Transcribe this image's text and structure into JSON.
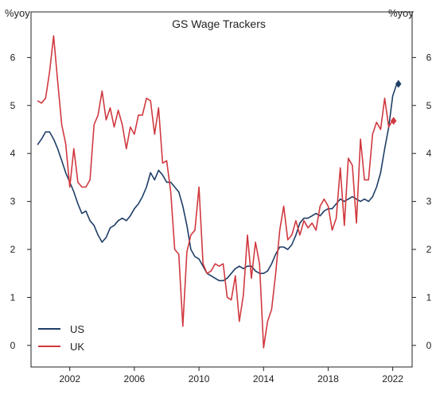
{
  "chart_data": {
    "type": "line",
    "title": "GS Wage Trackers",
    "ylabel_left": "%yoy",
    "ylabel_right": "%yoy",
    "xlim": [
      1999.6,
      2023.2
    ],
    "ylim": [
      -0.45,
      6.95
    ],
    "x_ticks": [
      2002,
      2006,
      2010,
      2014,
      2018,
      2022
    ],
    "x_tick_labels": [
      "2002",
      "2006",
      "2010",
      "2014",
      "2018",
      "2022"
    ],
    "y_ticks": [
      0,
      1,
      2,
      3,
      4,
      5,
      6
    ],
    "y_tick_labels": [
      "0",
      "1",
      "2",
      "3",
      "4",
      "5",
      "6"
    ],
    "grid": false,
    "legend_position": "bottom-left",
    "series": [
      {
        "name": "US",
        "color": "#1f3e66",
        "x": [
          2000.0,
          2000.25,
          2000.5,
          2000.75,
          2001.0,
          2001.25,
          2001.5,
          2001.75,
          2002.0,
          2002.25,
          2002.5,
          2002.75,
          2003.0,
          2003.25,
          2003.5,
          2003.75,
          2004.0,
          2004.25,
          2004.5,
          2004.75,
          2005.0,
          2005.25,
          2005.5,
          2005.75,
          2006.0,
          2006.25,
          2006.5,
          2006.75,
          2007.0,
          2007.25,
          2007.5,
          2007.75,
          2008.0,
          2008.25,
          2008.5,
          2008.75,
          2009.0,
          2009.25,
          2009.5,
          2009.75,
          2010.0,
          2010.25,
          2010.5,
          2010.75,
          2011.0,
          2011.25,
          2011.5,
          2011.75,
          2012.0,
          2012.25,
          2012.5,
          2012.75,
          2013.0,
          2013.25,
          2013.5,
          2013.75,
          2014.0,
          2014.25,
          2014.5,
          2014.75,
          2015.0,
          2015.25,
          2015.5,
          2015.75,
          2016.0,
          2016.25,
          2016.5,
          2016.75,
          2017.0,
          2017.25,
          2017.5,
          2017.75,
          2018.0,
          2018.25,
          2018.5,
          2018.75,
          2019.0,
          2019.25,
          2019.5,
          2019.75,
          2020.0,
          2020.25,
          2020.5,
          2020.75,
          2021.0,
          2021.25,
          2021.5,
          2021.75,
          2022.0,
          2022.25
        ],
        "y": [
          4.18,
          4.3,
          4.45,
          4.45,
          4.3,
          4.1,
          3.85,
          3.6,
          3.4,
          3.2,
          2.95,
          2.75,
          2.8,
          2.6,
          2.5,
          2.3,
          2.15,
          2.25,
          2.45,
          2.5,
          2.6,
          2.65,
          2.6,
          2.7,
          2.85,
          2.95,
          3.1,
          3.3,
          3.6,
          3.45,
          3.65,
          3.55,
          3.4,
          3.4,
          3.3,
          3.2,
          2.9,
          2.5,
          2.0,
          1.85,
          1.8,
          1.65,
          1.5,
          1.45,
          1.4,
          1.35,
          1.35,
          1.4,
          1.5,
          1.6,
          1.65,
          1.6,
          1.65,
          1.65,
          1.55,
          1.5,
          1.5,
          1.55,
          1.7,
          1.9,
          2.05,
          2.05,
          2.0,
          2.1,
          2.3,
          2.55,
          2.65,
          2.65,
          2.7,
          2.75,
          2.7,
          2.8,
          2.85,
          2.85,
          2.95,
          3.05,
          3.0,
          3.05,
          3.1,
          3.05,
          3.0,
          3.05,
          3.0,
          3.1,
          3.3,
          3.6,
          4.1,
          4.55,
          5.2,
          5.45
        ],
        "end_marker": {
          "x": 2022.35,
          "y": 5.45
        }
      },
      {
        "name": "UK",
        "color": "#d0393f",
        "x": [
          2000.0,
          2000.25,
          2000.5,
          2000.75,
          2001.0,
          2001.25,
          2001.5,
          2001.75,
          2002.0,
          2002.25,
          2002.5,
          2002.75,
          2003.0,
          2003.25,
          2003.5,
          2003.75,
          2004.0,
          2004.25,
          2004.5,
          2004.75,
          2005.0,
          2005.25,
          2005.5,
          2005.75,
          2006.0,
          2006.25,
          2006.5,
          2006.75,
          2007.0,
          2007.25,
          2007.5,
          2007.75,
          2008.0,
          2008.25,
          2008.5,
          2008.75,
          2009.0,
          2009.25,
          2009.5,
          2009.75,
          2010.0,
          2010.25,
          2010.5,
          2010.75,
          2011.0,
          2011.25,
          2011.5,
          2011.75,
          2012.0,
          2012.25,
          2012.5,
          2012.75,
          2013.0,
          2013.25,
          2013.5,
          2013.75,
          2014.0,
          2014.25,
          2014.5,
          2014.75,
          2015.0,
          2015.25,
          2015.5,
          2015.75,
          2016.0,
          2016.25,
          2016.5,
          2016.75,
          2017.0,
          2017.25,
          2017.5,
          2017.75,
          2018.0,
          2018.25,
          2018.5,
          2018.75,
          2019.0,
          2019.25,
          2019.5,
          2019.75,
          2020.0,
          2020.25,
          2020.5,
          2020.75,
          2021.0,
          2021.25,
          2021.5,
          2021.75,
          2022.0
        ],
        "y": [
          5.1,
          5.05,
          5.15,
          5.7,
          6.45,
          5.5,
          4.6,
          4.2,
          3.3,
          4.1,
          3.4,
          3.3,
          3.3,
          3.45,
          4.6,
          4.8,
          5.3,
          4.7,
          4.95,
          4.55,
          4.9,
          4.6,
          4.1,
          4.55,
          4.4,
          4.8,
          4.8,
          5.15,
          5.1,
          4.4,
          4.95,
          3.8,
          3.85,
          3.2,
          2.0,
          1.9,
          0.4,
          1.95,
          2.3,
          2.4,
          3.3,
          1.7,
          1.5,
          1.55,
          1.7,
          1.65,
          1.7,
          1.0,
          0.95,
          1.45,
          0.5,
          1.05,
          2.3,
          1.4,
          2.15,
          1.7,
          -0.05,
          0.5,
          0.75,
          1.5,
          2.4,
          2.9,
          2.2,
          2.3,
          2.6,
          2.3,
          2.6,
          2.45,
          2.55,
          2.4,
          2.9,
          3.05,
          2.9,
          2.4,
          2.65,
          3.7,
          2.5,
          3.9,
          3.75,
          2.55,
          4.3,
          3.45,
          3.45,
          4.4,
          4.65,
          4.5,
          5.15,
          4.55,
          4.7
        ],
        "end_marker": {
          "x": 2022.05,
          "y": 4.68
        }
      }
    ]
  }
}
